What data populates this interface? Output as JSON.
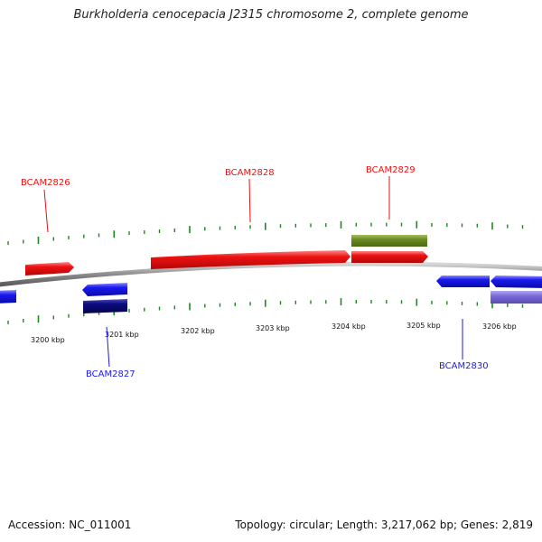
{
  "title": "Burkholderia cenocepacia J2315 chromosome 2, complete genome",
  "footer": {
    "accession": "Accession: NC_011001",
    "summary": "Topology: circular; Length: 3,217,062 bp; Genes: 2,819"
  },
  "colors": {
    "forward_gene": "#ee1111",
    "reverse_gene": "#1a1aee",
    "dark_reverse": "#0a0a80",
    "olive_feature": "#6a8a22",
    "lavender_feature": "#7a6ad8",
    "backbone": "#8a8a8a",
    "tick": "#1a8a1a"
  },
  "kbp_labels": [
    "3200 kbp",
    "3201 kbp",
    "3202 kbp",
    "3203 kbp",
    "3204 kbp",
    "3205 kbp",
    "3206 kbp"
  ],
  "gene_labels": {
    "bcam2826": "BCAM2826",
    "bcam2827": "BCAM2827",
    "bcam2828": "BCAM2828",
    "bcam2829": "BCAM2829",
    "bcam2830": "BCAM2830"
  }
}
